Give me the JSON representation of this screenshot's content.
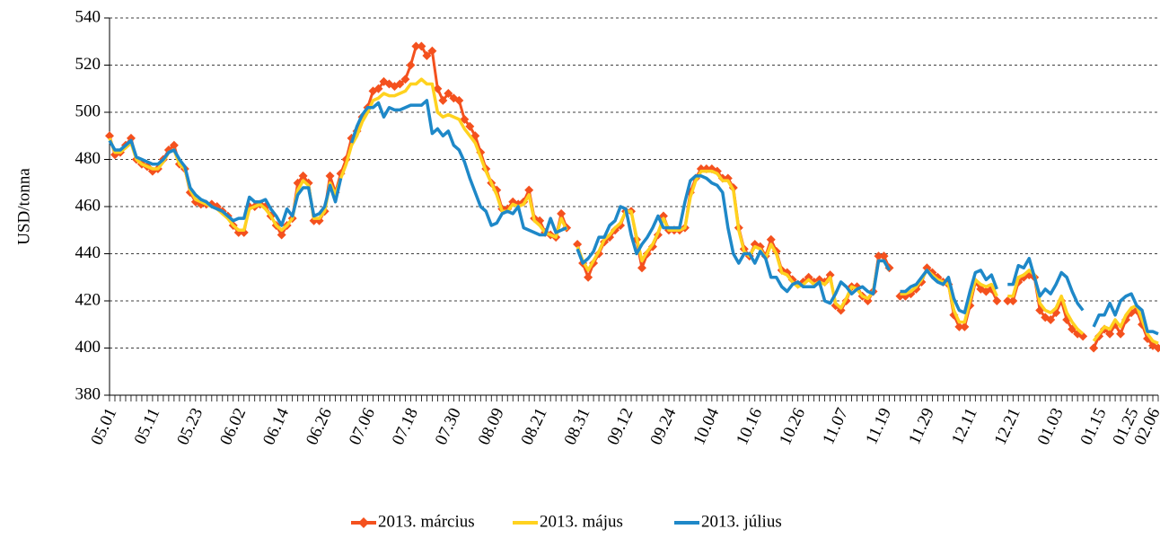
{
  "chart_data": {
    "type": "line",
    "y_label": "USD/tonna",
    "legend": "bottom",
    "grid": true,
    "markers_on_first_series": true,
    "ylim": [
      380,
      540
    ],
    "yticks": [
      380,
      400,
      420,
      440,
      460,
      480,
      500,
      520,
      540
    ],
    "categories": [
      "05.01",
      null,
      null,
      null,
      null,
      null,
      null,
      null,
      "05.11",
      null,
      null,
      null,
      null,
      null,
      null,
      null,
      "05.23",
      null,
      null,
      null,
      null,
      null,
      null,
      null,
      "06.02",
      null,
      null,
      null,
      null,
      null,
      null,
      null,
      "06.14",
      null,
      null,
      null,
      null,
      null,
      null,
      null,
      "06.26",
      null,
      null,
      null,
      null,
      null,
      null,
      null,
      "07.06",
      null,
      null,
      null,
      null,
      null,
      null,
      null,
      "07.18",
      null,
      null,
      null,
      null,
      null,
      null,
      null,
      "07.30",
      null,
      null,
      null,
      null,
      null,
      null,
      null,
      "08.09",
      null,
      null,
      null,
      null,
      null,
      null,
      null,
      "08.21",
      null,
      null,
      null,
      null,
      null,
      null,
      null,
      "08.31",
      null,
      null,
      null,
      null,
      null,
      null,
      null,
      "09.12",
      null,
      null,
      null,
      null,
      null,
      null,
      null,
      "09.24",
      null,
      null,
      null,
      null,
      null,
      null,
      null,
      "10.04",
      null,
      null,
      null,
      null,
      null,
      null,
      null,
      "10.16",
      null,
      null,
      null,
      null,
      null,
      null,
      null,
      "10.26",
      null,
      null,
      null,
      null,
      null,
      null,
      null,
      "11.07",
      null,
      null,
      null,
      null,
      null,
      null,
      null,
      "11.19",
      null,
      null,
      null,
      null,
      null,
      null,
      null,
      "11.29",
      null,
      null,
      null,
      null,
      null,
      null,
      null,
      "12.11",
      null,
      null,
      null,
      null,
      null,
      null,
      null,
      "12.21",
      null,
      null,
      null,
      null,
      null,
      null,
      null,
      "01.03",
      null,
      null,
      null,
      null,
      null,
      null,
      null,
      "01.15",
      null,
      null,
      null,
      null,
      null,
      "01.25",
      null,
      null,
      null,
      "02.06",
      null
    ],
    "series": [
      {
        "name": "2013. március",
        "color": "#f4511e",
        "values": [
          490,
          482,
          483,
          486,
          489,
          480,
          478,
          477,
          475,
          476,
          480,
          484,
          486,
          478,
          476,
          466,
          462,
          461,
          461,
          461,
          460,
          458,
          456,
          452,
          449,
          449,
          460,
          460,
          461,
          460,
          456,
          452,
          448,
          452,
          455,
          470,
          473,
          470,
          454,
          454,
          458,
          473,
          466,
          474,
          480,
          489,
          492,
          498,
          502,
          509,
          510,
          513,
          512,
          511,
          512,
          514,
          520,
          528,
          528,
          524,
          526,
          510,
          505,
          508,
          506,
          505,
          497,
          494,
          490,
          483,
          476,
          470,
          467,
          459,
          459,
          462,
          461,
          462,
          467,
          455,
          454,
          449,
          448,
          447,
          457,
          451,
          null,
          444,
          436,
          430,
          436,
          440,
          445,
          447,
          450,
          452,
          458,
          458,
          446,
          434,
          440,
          443,
          448,
          456,
          450,
          450,
          450,
          451,
          466,
          472,
          476,
          476,
          476,
          475,
          472,
          472,
          468,
          451,
          442,
          439,
          444,
          443,
          439,
          446,
          441,
          433,
          432,
          429,
          427,
          428,
          430,
          428,
          429,
          428,
          431,
          418,
          416,
          420,
          426,
          426,
          422,
          420,
          424,
          439,
          439,
          434,
          null,
          422,
          422,
          423,
          425,
          428,
          434,
          432,
          430,
          428,
          427,
          414,
          409,
          409,
          418,
          428,
          425,
          424,
          425,
          420,
          null,
          420,
          420,
          428,
          430,
          431,
          430,
          416,
          413,
          412,
          415,
          420,
          412,
          408,
          406,
          405,
          null,
          400,
          405,
          408,
          406,
          410,
          406,
          412,
          415,
          416,
          410,
          404,
          401,
          400
        ]
      },
      {
        "name": "2013. május",
        "color": "#ffd21f",
        "values": [
          489,
          483,
          483,
          485,
          487,
          480,
          478,
          477,
          476,
          476,
          479,
          483,
          484,
          478,
          476,
          467,
          463,
          462,
          461,
          460,
          459,
          457,
          455,
          452,
          450,
          450,
          459,
          460,
          461,
          459,
          456,
          452,
          450,
          452,
          455,
          467,
          471,
          469,
          455,
          455,
          458,
          470,
          465,
          472,
          478,
          486,
          490,
          496,
          500,
          505,
          506,
          508,
          507,
          507,
          508,
          509,
          512,
          512,
          514,
          512,
          512,
          500,
          498,
          499,
          498,
          497,
          493,
          490,
          487,
          481,
          475,
          470,
          465,
          458,
          458,
          461,
          460,
          461,
          465,
          454,
          452,
          449,
          448,
          447,
          455,
          450,
          null,
          443,
          437,
          433,
          437,
          441,
          446,
          448,
          451,
          453,
          458,
          458,
          447,
          437,
          441,
          444,
          449,
          455,
          450,
          450,
          450,
          451,
          464,
          471,
          475,
          475,
          475,
          474,
          471,
          471,
          467,
          450,
          441,
          439,
          443,
          442,
          438,
          444,
          440,
          432,
          431,
          428,
          426,
          427,
          429,
          427,
          428,
          427,
          430,
          419,
          417,
          421,
          426,
          425,
          422,
          421,
          424,
          437,
          437,
          433,
          null,
          423,
          423,
          424,
          426,
          429,
          433,
          431,
          429,
          428,
          427,
          416,
          411,
          411,
          420,
          429,
          427,
          426,
          427,
          422,
          null,
          422,
          422,
          430,
          431,
          433,
          431,
          419,
          416,
          415,
          417,
          422,
          415,
          411,
          408,
          406,
          null,
          403,
          406,
          409,
          408,
          412,
          409,
          414,
          417,
          418,
          412,
          406,
          403,
          402
        ]
      },
      {
        "name": "2013. július",
        "color": "#1e88c8",
        "values": [
          488,
          484,
          484,
          486,
          488,
          481,
          480,
          479,
          478,
          478,
          480,
          483,
          484,
          480,
          477,
          468,
          465,
          463,
          462,
          460,
          459,
          458,
          456,
          454,
          455,
          455,
          464,
          462,
          462,
          463,
          459,
          456,
          452,
          459,
          456,
          465,
          468,
          468,
          456,
          457,
          460,
          469,
          462,
          472,
          null,
          487,
          494,
          499,
          502,
          502,
          504,
          498,
          502,
          501,
          501,
          502,
          503,
          503,
          503,
          505,
          491,
          493,
          490,
          492,
          486,
          484,
          479,
          472,
          466,
          460,
          458,
          452,
          453,
          457,
          458,
          457,
          460,
          451,
          450,
          449,
          448,
          448,
          455,
          449,
          450,
          451,
          null,
          442,
          436,
          438,
          441,
          447,
          447,
          452,
          454,
          460,
          459,
          448,
          440,
          444,
          447,
          451,
          456,
          451,
          451,
          451,
          451,
          462,
          471,
          473,
          473,
          472,
          470,
          469,
          466,
          451,
          440,
          436,
          440,
          440,
          436,
          441,
          438,
          430,
          430,
          426,
          424,
          427,
          428,
          426,
          426,
          426,
          428,
          420,
          419,
          423,
          428,
          426,
          423,
          425,
          426,
          424,
          423,
          437,
          437,
          433,
          null,
          424,
          424,
          426,
          427,
          430,
          433,
          430,
          428,
          427,
          430,
          421,
          416,
          415,
          424,
          432,
          433,
          429,
          431,
          425,
          null,
          427,
          427,
          435,
          434,
          438,
          430,
          422,
          425,
          423,
          427,
          432,
          430,
          424,
          419,
          416,
          null,
          409,
          414,
          414,
          419,
          414,
          420,
          422,
          423,
          418,
          416,
          407,
          407,
          406
        ]
      }
    ]
  }
}
